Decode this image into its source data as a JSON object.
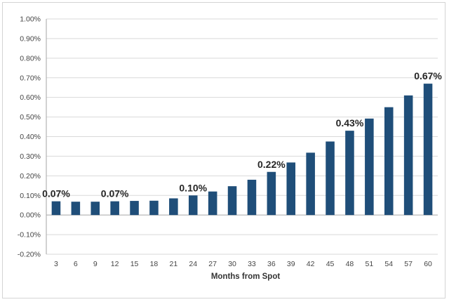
{
  "chart_data": {
    "type": "bar",
    "categories": [
      "3",
      "6",
      "9",
      "12",
      "15",
      "18",
      "21",
      "24",
      "27",
      "30",
      "33",
      "36",
      "39",
      "42",
      "45",
      "48",
      "51",
      "54",
      "57",
      "60"
    ],
    "values": [
      0.07,
      0.068,
      0.068,
      0.07,
      0.072,
      0.073,
      0.085,
      0.1,
      0.12,
      0.147,
      0.18,
      0.22,
      0.268,
      0.318,
      0.375,
      0.43,
      0.492,
      0.55,
      0.61,
      0.67
    ],
    "data_labels": [
      {
        "index": 0,
        "text": "0.07%"
      },
      {
        "index": 3,
        "text": "0.07%"
      },
      {
        "index": 7,
        "text": "0.10%"
      },
      {
        "index": 11,
        "text": "0.22%"
      },
      {
        "index": 15,
        "text": "0.43%"
      },
      {
        "index": 19,
        "text": "0.67%"
      }
    ],
    "xlabel": "Months from Spot",
    "ylabel": "",
    "ylim": [
      -0.2,
      1.0
    ],
    "yticks": [
      -0.2,
      -0.1,
      0.0,
      0.1,
      0.2,
      0.3,
      0.4,
      0.5,
      0.6,
      0.7,
      0.8,
      0.9,
      1.0
    ],
    "ytick_labels": [
      "-0.20%",
      "-0.10%",
      "0.00%",
      "0.10%",
      "0.20%",
      "0.30%",
      "0.40%",
      "0.50%",
      "0.60%",
      "0.70%",
      "0.80%",
      "0.90%",
      "1.00%"
    ],
    "grid": true,
    "legend": "none",
    "colors": {
      "bar": "#1f4e79",
      "grid": "#d9d9d9",
      "axis": "#a6a6a6"
    }
  }
}
